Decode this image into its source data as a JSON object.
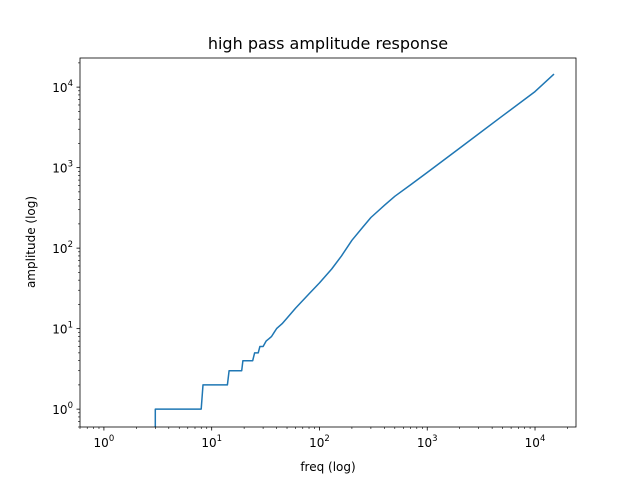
{
  "chart_data": {
    "type": "line",
    "title": "high pass amplitude response",
    "xlabel": "freq (log)",
    "ylabel": "amplitude (log)",
    "xscale": "log",
    "yscale": "log",
    "xlim": [
      0.6,
      24000
    ],
    "ylim": [
      0.6,
      23000
    ],
    "grid": false,
    "line_color": "#1f77b4",
    "x_ticks": [
      {
        "value": 1,
        "base": "10",
        "exp": "0"
      },
      {
        "value": 10,
        "base": "10",
        "exp": "1"
      },
      {
        "value": 100,
        "base": "10",
        "exp": "2"
      },
      {
        "value": 1000,
        "base": "10",
        "exp": "3"
      },
      {
        "value": 10000,
        "base": "10",
        "exp": "4"
      }
    ],
    "y_ticks": [
      {
        "value": 1,
        "base": "10",
        "exp": "0"
      },
      {
        "value": 10,
        "base": "10",
        "exp": "1"
      },
      {
        "value": 100,
        "base": "10",
        "exp": "2"
      },
      {
        "value": 1000,
        "base": "10",
        "exp": "3"
      },
      {
        "value": 10000,
        "base": "10",
        "exp": "4"
      }
    ],
    "series": [
      {
        "x": [
          3,
          3,
          8,
          8.3,
          14,
          14.5,
          19,
          19.5,
          24,
          25,
          27,
          28,
          30,
          32,
          34,
          36,
          38,
          40,
          45,
          50,
          60,
          80,
          100,
          130,
          160,
          200,
          250,
          300,
          400,
          500,
          700,
          1000,
          2000,
          5000,
          10000,
          15000
        ],
        "y": [
          0.6,
          1,
          1,
          2,
          2,
          3,
          3,
          4,
          4,
          5,
          5,
          6,
          6,
          7,
          7.5,
          8,
          9,
          10,
          11.5,
          13.5,
          18,
          27,
          37,
          55,
          80,
          125,
          180,
          240,
          340,
          440,
          610,
          870,
          1750,
          4400,
          8800,
          14500
        ]
      }
    ]
  }
}
